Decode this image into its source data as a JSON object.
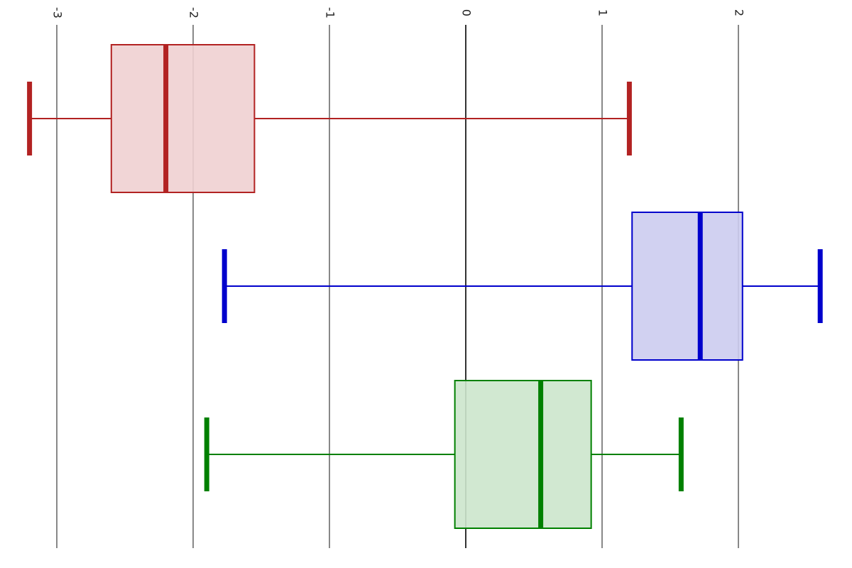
{
  "chart_data": {
    "type": "boxplot",
    "orientation": "horizontal",
    "xlim": [
      -3.2,
      2.6
    ],
    "ticks": [
      -3,
      -2,
      -1,
      0,
      1,
      2
    ],
    "tick_labels": [
      "-3",
      "-2",
      "-1",
      "0",
      "1",
      "2"
    ],
    "grid": true,
    "series": [
      {
        "color": "#b22222",
        "fill": "#f0d0d2",
        "min": -3.2,
        "q1": -2.6,
        "median": -2.2,
        "q3": -1.55,
        "max": 1.2
      },
      {
        "color": "#0000cc",
        "fill": "#ccccf0",
        "min": -1.77,
        "q1": 1.22,
        "median": 1.72,
        "q3": 2.03,
        "max": 2.6
      },
      {
        "color": "#008000",
        "fill": "#cce6cc",
        "min": -1.9,
        "q1": -0.08,
        "median": 0.55,
        "q3": 0.92,
        "max": 1.58
      }
    ]
  }
}
